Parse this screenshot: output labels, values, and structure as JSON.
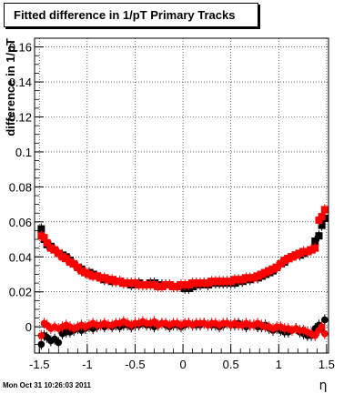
{
  "chart_data": {
    "type": "scatter",
    "title": "Fitted difference in 1/pT  Primary Tracks",
    "xlabel": "η",
    "ylabel": "difference in 1/pT",
    "xlim": [
      -1.55,
      1.52
    ],
    "ylim": [
      -0.015,
      0.165
    ],
    "xticks": [
      "-1.5",
      "-1",
      "-0.5",
      "0",
      "0.5",
      "1",
      "1.5"
    ],
    "yticks": [
      "0",
      "0.02",
      "0.04",
      "0.06",
      "0.08",
      "0.1",
      "0.12",
      "0.14",
      "0.16"
    ],
    "grid": true,
    "series": [
      {
        "marker": "circle",
        "color": "#000000",
        "x": [
          -1.48,
          -1.45,
          -1.42,
          -1.38,
          -1.34,
          -1.3,
          -1.26,
          -1.22,
          -1.18,
          -1.14,
          -1.1,
          -1.06,
          -1.02,
          -0.98,
          -0.94,
          -0.9,
          -0.86,
          -0.82,
          -0.78,
          -0.74,
          -0.7,
          -0.66,
          -0.62,
          -0.58,
          -0.54,
          -0.5,
          -0.46,
          -0.42,
          -0.38,
          -0.34,
          -0.3,
          -0.26,
          -0.22,
          -0.18,
          -0.14,
          -0.1,
          -0.06,
          -0.02,
          0.02,
          0.06,
          0.1,
          0.14,
          0.18,
          0.22,
          0.26,
          0.3,
          0.34,
          0.38,
          0.42,
          0.46,
          0.5,
          0.54,
          0.58,
          0.62,
          0.66,
          0.7,
          0.74,
          0.78,
          0.82,
          0.86,
          0.9,
          0.94,
          0.98,
          1.02,
          1.06,
          1.1,
          1.14,
          1.18,
          1.22,
          1.26,
          1.3,
          1.34,
          1.38,
          1.42,
          1.45,
          1.48
        ],
        "y": [
          -0.01,
          -0.005,
          -0.006,
          -0.008,
          -0.007,
          -0.009,
          -0.004,
          -0.003,
          -0.003,
          -0.002,
          -0.001,
          -0.002,
          -0.001,
          0.0,
          -0.001,
          0.0,
          0.001,
          0.0,
          0.001,
          0.0,
          0.001,
          0.0,
          0.001,
          0.001,
          0.0,
          0.001,
          0.001,
          0.002,
          0.001,
          0.001,
          0.0,
          0.001,
          0.002,
          0.001,
          0.0,
          0.001,
          0.001,
          0.0,
          0.001,
          0.002,
          0.001,
          0.001,
          0.001,
          0.002,
          0.001,
          0.001,
          0.001,
          0.0,
          0.001,
          0.002,
          0.001,
          0.001,
          0.002,
          0.001,
          0.0,
          0.001,
          0.001,
          0.0,
          0.0,
          0.001,
          -0.001,
          -0.002,
          -0.001,
          -0.002,
          -0.003,
          -0.003,
          -0.002,
          -0.001,
          -0.003,
          -0.004,
          -0.005,
          -0.005,
          -0.001,
          0.001,
          -0.001,
          0.004
        ]
      },
      {
        "marker": "circle",
        "color": "#ff0000",
        "x": [
          -1.48,
          -1.45,
          -1.42,
          -1.38,
          -1.34,
          -1.3,
          -1.26,
          -1.22,
          -1.18,
          -1.14,
          -1.1,
          -1.06,
          -1.02,
          -0.98,
          -0.94,
          -0.9,
          -0.86,
          -0.82,
          -0.78,
          -0.74,
          -0.7,
          -0.66,
          -0.62,
          -0.58,
          -0.54,
          -0.5,
          -0.46,
          -0.42,
          -0.38,
          -0.34,
          -0.3,
          -0.26,
          -0.22,
          -0.18,
          -0.14,
          -0.1,
          -0.06,
          -0.02,
          0.02,
          0.06,
          0.1,
          0.14,
          0.18,
          0.22,
          0.26,
          0.3,
          0.34,
          0.38,
          0.42,
          0.46,
          0.5,
          0.54,
          0.58,
          0.62,
          0.66,
          0.7,
          0.74,
          0.78,
          0.82,
          0.86,
          0.9,
          0.94,
          0.98,
          1.02,
          1.06,
          1.1,
          1.14,
          1.18,
          1.22,
          1.26,
          1.3,
          1.34,
          1.38,
          1.42,
          1.45,
          1.48
        ],
        "y": [
          -0.005,
          0.002,
          0.001,
          -0.001,
          0.0,
          -0.001,
          0.0,
          0.001,
          0.0,
          -0.001,
          0.0,
          0.001,
          0.0,
          0.001,
          0.002,
          0.001,
          0.001,
          0.002,
          0.001,
          0.001,
          0.002,
          0.002,
          0.003,
          0.002,
          0.001,
          0.002,
          0.002,
          0.003,
          0.002,
          0.002,
          0.003,
          0.001,
          0.002,
          0.002,
          0.001,
          0.002,
          0.002,
          0.001,
          0.002,
          0.002,
          0.001,
          0.002,
          0.002,
          0.002,
          0.001,
          0.002,
          0.002,
          0.001,
          0.002,
          0.002,
          0.001,
          0.002,
          0.001,
          0.001,
          0.002,
          0.001,
          0.001,
          0.002,
          0.001,
          0.0,
          0.0,
          -0.001,
          0.0,
          0.0,
          -0.001,
          -0.001,
          -0.002,
          -0.001,
          -0.002,
          -0.002,
          -0.003,
          -0.004,
          -0.005,
          -0.002,
          0.0,
          -0.004
        ]
      },
      {
        "marker": "square",
        "color": "#000000",
        "x": [
          -1.48,
          -1.45,
          -1.42,
          -1.38,
          -1.34,
          -1.3,
          -1.26,
          -1.22,
          -1.18,
          -1.14,
          -1.1,
          -1.06,
          -1.02,
          -0.98,
          -0.94,
          -0.9,
          -0.86,
          -0.82,
          -0.78,
          -0.74,
          -0.7,
          -0.66,
          -0.62,
          -0.58,
          -0.54,
          -0.5,
          -0.46,
          -0.42,
          -0.38,
          -0.34,
          -0.3,
          -0.26,
          -0.22,
          -0.18,
          -0.14,
          -0.1,
          -0.06,
          -0.02,
          0.02,
          0.06,
          0.1,
          0.14,
          0.18,
          0.22,
          0.26,
          0.3,
          0.34,
          0.38,
          0.42,
          0.46,
          0.5,
          0.54,
          0.58,
          0.62,
          0.66,
          0.7,
          0.74,
          0.78,
          0.82,
          0.86,
          0.9,
          0.94,
          0.98,
          1.02,
          1.06,
          1.1,
          1.14,
          1.18,
          1.22,
          1.26,
          1.3,
          1.34,
          1.38,
          1.42,
          1.45,
          1.48
        ],
        "y": [
          0.056,
          0.05,
          0.047,
          0.046,
          0.044,
          0.042,
          0.041,
          0.04,
          0.038,
          0.036,
          0.034,
          0.033,
          0.031,
          0.031,
          0.03,
          0.029,
          0.028,
          0.027,
          0.027,
          0.026,
          0.026,
          0.026,
          0.025,
          0.025,
          0.024,
          0.025,
          0.025,
          0.024,
          0.024,
          0.025,
          0.025,
          0.024,
          0.024,
          0.024,
          0.024,
          0.023,
          0.023,
          0.023,
          0.022,
          0.022,
          0.023,
          0.024,
          0.024,
          0.025,
          0.024,
          0.025,
          0.025,
          0.025,
          0.025,
          0.025,
          0.025,
          0.025,
          0.026,
          0.026,
          0.027,
          0.027,
          0.028,
          0.028,
          0.029,
          0.03,
          0.031,
          0.032,
          0.034,
          0.036,
          0.037,
          0.039,
          0.04,
          0.041,
          0.041,
          0.042,
          0.043,
          0.044,
          0.049,
          0.052,
          0.058,
          0.062
        ]
      },
      {
        "marker": "square",
        "color": "#ff0000",
        "x": [
          -1.48,
          -1.45,
          -1.42,
          -1.38,
          -1.34,
          -1.3,
          -1.26,
          -1.22,
          -1.18,
          -1.14,
          -1.1,
          -1.06,
          -1.02,
          -0.98,
          -0.94,
          -0.9,
          -0.86,
          -0.82,
          -0.78,
          -0.74,
          -0.7,
          -0.66,
          -0.62,
          -0.58,
          -0.54,
          -0.5,
          -0.46,
          -0.42,
          -0.38,
          -0.34,
          -0.3,
          -0.26,
          -0.22,
          -0.18,
          -0.14,
          -0.1,
          -0.06,
          -0.02,
          0.02,
          0.06,
          0.1,
          0.14,
          0.18,
          0.22,
          0.26,
          0.3,
          0.34,
          0.38,
          0.42,
          0.46,
          0.5,
          0.54,
          0.58,
          0.62,
          0.66,
          0.7,
          0.74,
          0.78,
          0.82,
          0.86,
          0.9,
          0.94,
          0.98,
          1.02,
          1.06,
          1.1,
          1.14,
          1.18,
          1.22,
          1.26,
          1.3,
          1.34,
          1.38,
          1.42,
          1.45,
          1.48
        ],
        "y": [
          0.052,
          0.051,
          0.048,
          0.045,
          0.044,
          0.042,
          0.04,
          0.039,
          0.037,
          0.036,
          0.034,
          0.032,
          0.031,
          0.03,
          0.029,
          0.029,
          0.028,
          0.028,
          0.027,
          0.027,
          0.026,
          0.026,
          0.025,
          0.025,
          0.025,
          0.025,
          0.024,
          0.024,
          0.024,
          0.024,
          0.024,
          0.023,
          0.023,
          0.024,
          0.024,
          0.023,
          0.023,
          0.024,
          0.024,
          0.024,
          0.025,
          0.025,
          0.025,
          0.025,
          0.025,
          0.026,
          0.026,
          0.026,
          0.026,
          0.026,
          0.026,
          0.027,
          0.027,
          0.027,
          0.028,
          0.028,
          0.028,
          0.029,
          0.03,
          0.031,
          0.032,
          0.033,
          0.034,
          0.036,
          0.038,
          0.039,
          0.04,
          0.041,
          0.042,
          0.043,
          0.043,
          0.044,
          0.045,
          0.061,
          0.063,
          0.067
        ]
      }
    ]
  },
  "footer": {
    "timestamp": "Mon Oct 31 10:26:03 2011"
  }
}
